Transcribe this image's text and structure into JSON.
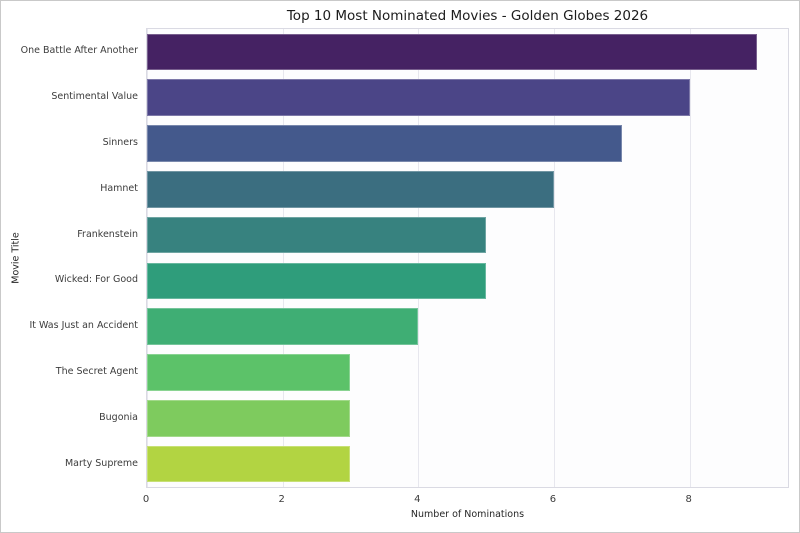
{
  "chart_data": {
    "type": "bar",
    "orientation": "horizontal",
    "title": "Top 10 Most Nominated Movies - Golden Globes 2026",
    "categories": [
      "One Battle After Another",
      "Sentimental Value",
      "Sinners",
      "Hamnet",
      "Frankenstein",
      "Wicked: For Good",
      "It Was Just an Accident",
      "The Secret Agent",
      "Bugonia",
      "Marty Supreme"
    ],
    "values": [
      9,
      8,
      7,
      6,
      5,
      5,
      4,
      3,
      3,
      3
    ],
    "bar_colors": [
      "#452263",
      "#4b4587",
      "#44598c",
      "#3b6e80",
      "#37827f",
      "#2f9d7b",
      "#3fae74",
      "#5cc269",
      "#7ecb5e",
      "#b2d442"
    ],
    "xlabel": "Number of Nominations",
    "ylabel": "Movie Title",
    "xticks": [
      0,
      2,
      4,
      6,
      8
    ],
    "xlim": [
      0,
      9.45
    ],
    "grid": "vertical-only",
    "legend": "none",
    "colors": {
      "figure_background": "#ffffff",
      "plot_background": "#fdfdfe",
      "grid_color": "#e7e7ee",
      "text_color": "#262626"
    }
  }
}
